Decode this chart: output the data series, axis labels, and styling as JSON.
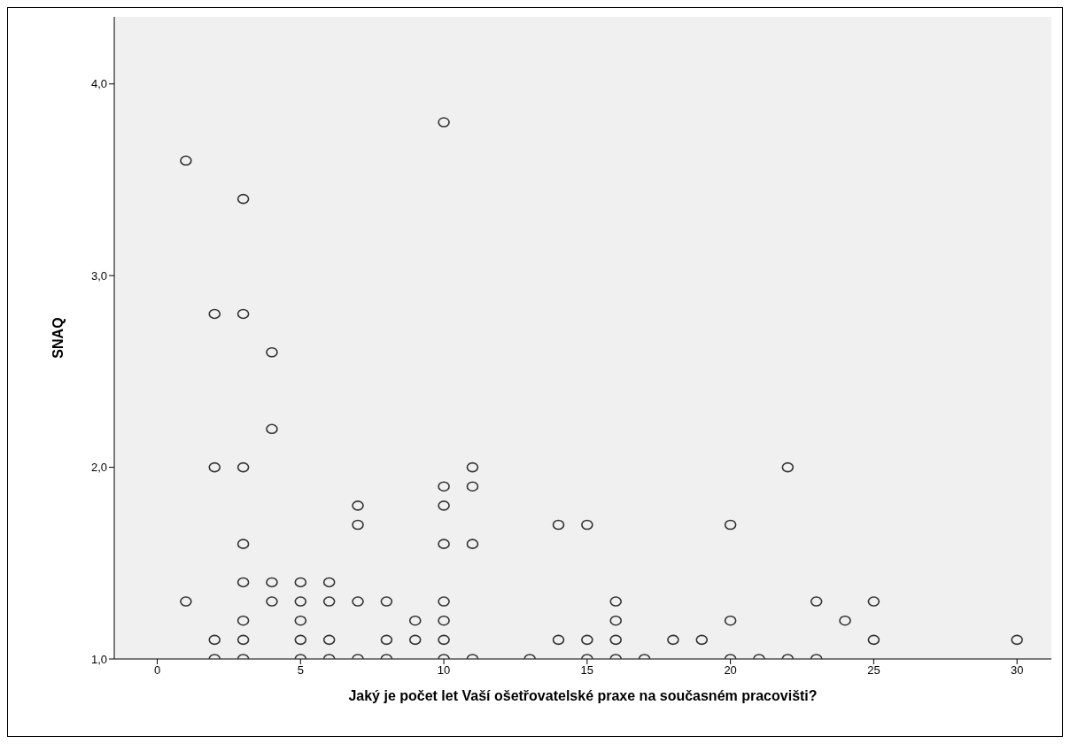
{
  "chart_data": {
    "type": "scatter",
    "xlabel": "Jaký je počet let Vaší ošetřovatelské praxe na současném pracovišti?",
    "ylabel": "SNAQ",
    "x": [
      1,
      1,
      2,
      2,
      2,
      2,
      3,
      3,
      3,
      3,
      3,
      3,
      3,
      3,
      4,
      4,
      4,
      4,
      5,
      5,
      5,
      5,
      5,
      6,
      6,
      6,
      6,
      7,
      7,
      7,
      7,
      8,
      8,
      8,
      9,
      9,
      10,
      10,
      10,
      10,
      10,
      10,
      10,
      10,
      11,
      11,
      11,
      11,
      13,
      14,
      14,
      15,
      15,
      15,
      16,
      16,
      16,
      16,
      17,
      18,
      19,
      20,
      20,
      20,
      21,
      22,
      22,
      23,
      23,
      24,
      25,
      25,
      30
    ],
    "values": [
      3.6,
      1.3,
      2.8,
      2.0,
      1.1,
      1.0,
      3.4,
      2.8,
      2.0,
      1.6,
      1.4,
      1.2,
      1.1,
      1.0,
      2.6,
      2.2,
      1.4,
      1.3,
      1.4,
      1.3,
      1.2,
      1.1,
      1.0,
      1.4,
      1.3,
      1.1,
      1.0,
      1.8,
      1.7,
      1.3,
      1.0,
      1.3,
      1.1,
      1.0,
      1.2,
      1.1,
      3.8,
      1.9,
      1.8,
      1.6,
      1.3,
      1.2,
      1.1,
      1.0,
      2.0,
      1.9,
      1.6,
      1.0,
      1.0,
      1.7,
      1.1,
      1.7,
      1.1,
      1.0,
      1.3,
      1.2,
      1.1,
      1.0,
      1.0,
      1.1,
      1.1,
      1.7,
      1.2,
      1.0,
      1.0,
      2.0,
      1.0,
      1.3,
      1.0,
      1.2,
      1.3,
      1.1,
      1.1
    ],
    "color": "#333333",
    "marker": "circle",
    "xlim": [
      -1.5,
      31.2
    ],
    "xticks": [
      0,
      5,
      10,
      15,
      20,
      25,
      30
    ],
    "ylim": [
      1.0,
      4.35
    ],
    "yticks": [
      {
        "value": 1,
        "label": "1,0"
      },
      {
        "value": 2,
        "label": "2,0"
      },
      {
        "value": 3,
        "label": "3,0"
      },
      {
        "value": 4,
        "label": "4,0"
      }
    ]
  }
}
